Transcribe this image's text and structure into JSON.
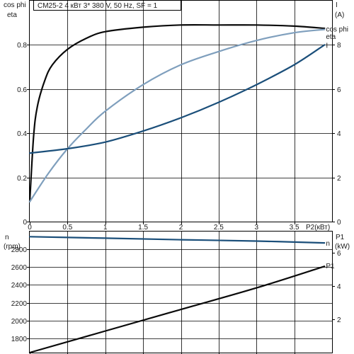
{
  "chart_data": [
    {
      "type": "line",
      "title": "CM25-2    4 кВт    3* 380 V, 50 Hz, SF = 1",
      "xlabel": "P2(кВт)",
      "xlim": [
        0,
        4.0
      ],
      "x_ticks": [
        "0",
        "0.5",
        "1",
        "1.5",
        "2",
        "2.5",
        "3",
        "3.5"
      ],
      "x_tick_values": [
        0,
        0.5,
        1,
        1.5,
        2,
        2.5,
        3,
        3.5
      ],
      "ylabel_left": [
        "cos phi",
        "eta"
      ],
      "ylim_left": [
        0,
        1
      ],
      "y_ticks_left": [
        "0",
        "0.2",
        "0.4",
        "0.6",
        "0.8"
      ],
      "y_tick_values_left": [
        0,
        0.2,
        0.4,
        0.6,
        0.8
      ],
      "ylabel_right": [
        "I",
        "(A)"
      ],
      "ylim_right": [
        0,
        10
      ],
      "y_ticks_right": [
        "0",
        "2",
        "4",
        "6",
        "8"
      ],
      "y_tick_values_right": [
        0,
        2,
        4,
        6,
        8
      ],
      "grid": true,
      "series": [
        {
          "name": "eta",
          "axis": "left",
          "color": "#0a0a0a",
          "x": [
            0.0,
            0.05,
            0.1,
            0.2,
            0.3,
            0.5,
            0.75,
            1.0,
            1.5,
            2.0,
            2.5,
            3.0,
            3.5,
            3.9
          ],
          "values": [
            0.09,
            0.38,
            0.52,
            0.64,
            0.71,
            0.78,
            0.83,
            0.86,
            0.88,
            0.89,
            0.89,
            0.89,
            0.885,
            0.875
          ]
        },
        {
          "name": "cos phi",
          "axis": "left",
          "color": "#7f9fbd",
          "x": [
            0.0,
            0.25,
            0.5,
            0.75,
            1.0,
            1.5,
            2.0,
            2.5,
            3.0,
            3.5,
            3.9
          ],
          "values": [
            0.09,
            0.22,
            0.33,
            0.42,
            0.5,
            0.62,
            0.71,
            0.77,
            0.82,
            0.855,
            0.87
          ]
        },
        {
          "name": "I",
          "axis": "right",
          "color": "#1b4f7a",
          "x": [
            0.0,
            0.5,
            1.0,
            1.5,
            2.0,
            2.5,
            3.0,
            3.5,
            3.9
          ],
          "values": [
            3.1,
            3.3,
            3.6,
            4.1,
            4.7,
            5.4,
            6.2,
            7.1,
            8.0
          ]
        }
      ],
      "line_labels": [
        {
          "text": "cos phi",
          "series": "cos phi"
        },
        {
          "text": "eta",
          "series": "eta"
        },
        {
          "text": "I",
          "series": "I"
        }
      ]
    },
    {
      "type": "line",
      "xlim": [
        0,
        4.0
      ],
      "ylabel_left": [
        "n",
        "(rpm)"
      ],
      "ylim_left": [
        1640,
        3000
      ],
      "y_ticks_left": [
        "1800",
        "2000",
        "2200",
        "2400",
        "2600",
        "2800"
      ],
      "y_tick_values_left": [
        1800,
        2000,
        2200,
        2400,
        2600,
        2800
      ],
      "ylabel_right": [
        "P1",
        "(kW)"
      ],
      "ylim_right": [
        0,
        7.3
      ],
      "y_ticks_right": [
        "2",
        "4",
        "6"
      ],
      "y_tick_values_right": [
        2,
        4,
        6
      ],
      "grid": true,
      "series": [
        {
          "name": "n",
          "axis": "left",
          "color": "#1b4f7a",
          "x": [
            0.0,
            1.0,
            2.0,
            3.0,
            3.9
          ],
          "values": [
            2942,
            2925,
            2908,
            2893,
            2872
          ]
        },
        {
          "name": "P1",
          "axis": "right",
          "color": "#0a0a0a",
          "x": [
            0.0,
            1.0,
            2.0,
            3.0,
            3.9
          ],
          "values": [
            0.0,
            1.3,
            2.6,
            3.9,
            5.2
          ]
        }
      ],
      "line_labels": [
        {
          "text": "n",
          "series": "n"
        },
        {
          "text": "P1",
          "series": "P1"
        }
      ]
    }
  ]
}
